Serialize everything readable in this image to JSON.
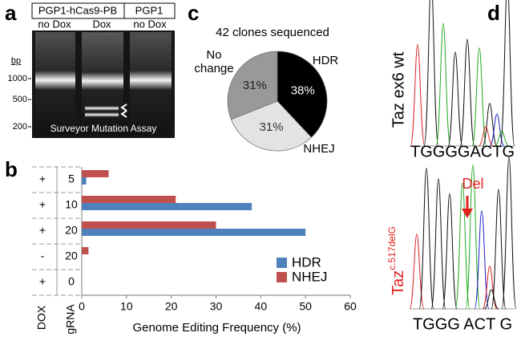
{
  "panel_labels": [
    "a",
    "b",
    "c",
    "d"
  ],
  "gel": {
    "lane_groups": [
      "PGP1-hCas9-PB",
      "PGP1"
    ],
    "lanes": [
      "no Dox",
      "Dox",
      "no Dox"
    ],
    "size_unit": "bp",
    "markers": [
      1000,
      500,
      200
    ],
    "caption": "Surveyor Mutation Assay"
  },
  "chart_data": [
    {
      "type": "bar",
      "orientation": "horizontal",
      "category_headers": [
        "DOX",
        "gRNA"
      ],
      "dox": [
        "+",
        "+",
        "+",
        "-",
        "+"
      ],
      "categories": [
        "5",
        "10",
        "20",
        "20",
        "0"
      ],
      "series": [
        {
          "name": "NHEJ",
          "color": "#c0504d",
          "values": [
            6,
            21,
            30,
            1.5,
            0
          ]
        },
        {
          "name": "HDR",
          "color": "#4f81bd",
          "values": [
            1,
            38,
            50,
            0,
            0
          ]
        }
      ],
      "xlabel": "Genome Editing Frequency (%)",
      "xlim": [
        0,
        60
      ],
      "xticks": [
        0,
        10,
        20,
        30,
        40,
        50,
        60
      ],
      "legend": "lower right",
      "legend_order": [
        1,
        0
      ]
    },
    {
      "type": "pie",
      "title": "42 clones sequenced",
      "categories": [
        "HDR",
        "NHEJ",
        "No change"
      ],
      "values": [
        38,
        31,
        31
      ],
      "value_labels": [
        "38%",
        "31%",
        "31%"
      ],
      "colors": [
        "#000000",
        "#e3e3e3",
        "#999999"
      ],
      "label_colors": [
        "#ffffff",
        "#333333",
        "#222222"
      ]
    }
  ],
  "chromatograms": [
    {
      "label": "Taz ex6 wt",
      "sequence": "TGGGGACTG"
    },
    {
      "label": "Taz",
      "label_superscript": "c.517delG",
      "annotation": "Del",
      "sequence": "TGGG ACT G"
    }
  ]
}
